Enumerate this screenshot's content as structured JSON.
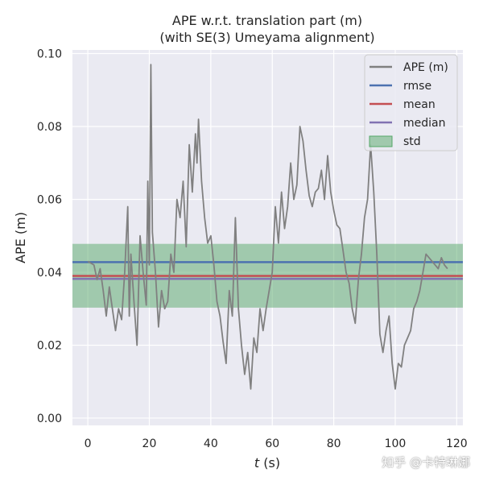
{
  "chart_data": {
    "type": "line",
    "title": [
      "APE w.r.t. translation part (m)",
      "(with SE(3) Umeyama alignment)"
    ],
    "xlabel": "t (s)",
    "ylabel": "APE (m)",
    "xlim": [
      -5,
      122
    ],
    "ylim": [
      -0.002,
      0.101
    ],
    "xticks": [
      0,
      20,
      40,
      60,
      80,
      100,
      120
    ],
    "yticks": [
      0.0,
      0.02,
      0.04,
      0.06,
      0.08,
      0.1
    ],
    "xtick_labels": [
      "0",
      "20",
      "40",
      "60",
      "80",
      "100",
      "120"
    ],
    "ytick_labels": [
      "0.00",
      "0.02",
      "0.04",
      "0.06",
      "0.08",
      "0.10"
    ],
    "grid": true,
    "legend": "top-right",
    "series": [
      {
        "name": "APE (m)",
        "color": "#808080",
        "x": [
          0,
          2,
          3,
          4,
          5,
          6,
          7,
          8,
          9,
          10,
          11,
          12,
          13,
          13.5,
          14,
          15,
          16,
          17,
          18,
          19,
          19.5,
          20,
          20.5,
          21,
          22,
          23,
          24,
          25,
          26,
          27,
          28,
          29,
          30,
          31,
          32,
          33,
          34,
          35,
          35.5,
          36,
          37,
          38,
          39,
          40,
          41,
          42,
          43,
          44,
          45,
          46,
          47,
          48,
          49,
          50,
          51,
          52,
          53,
          54,
          55,
          56,
          57,
          58,
          59,
          60,
          61,
          62,
          63,
          64,
          65,
          66,
          67,
          68,
          69,
          70,
          71,
          72,
          73,
          74,
          75,
          76,
          77,
          78,
          79,
          80,
          81,
          82,
          83,
          84,
          85,
          86,
          87,
          88,
          89,
          90,
          91,
          92,
          93,
          94,
          95,
          96,
          97,
          98,
          99,
          100,
          101,
          102,
          103,
          104,
          105,
          106,
          107,
          108,
          109,
          110,
          111,
          112,
          113,
          114,
          115,
          116,
          117
        ],
        "y": [
          0.043,
          0.042,
          0.038,
          0.041,
          0.035,
          0.028,
          0.036,
          0.03,
          0.024,
          0.03,
          0.027,
          0.04,
          0.058,
          0.028,
          0.045,
          0.032,
          0.02,
          0.05,
          0.04,
          0.031,
          0.065,
          0.042,
          0.097,
          0.051,
          0.04,
          0.025,
          0.035,
          0.03,
          0.032,
          0.045,
          0.04,
          0.06,
          0.055,
          0.065,
          0.047,
          0.075,
          0.062,
          0.078,
          0.07,
          0.082,
          0.065,
          0.055,
          0.048,
          0.05,
          0.042,
          0.032,
          0.028,
          0.021,
          0.015,
          0.035,
          0.028,
          0.055,
          0.03,
          0.02,
          0.012,
          0.018,
          0.008,
          0.022,
          0.018,
          0.03,
          0.024,
          0.03,
          0.035,
          0.04,
          0.058,
          0.048,
          0.062,
          0.052,
          0.058,
          0.07,
          0.06,
          0.064,
          0.08,
          0.076,
          0.068,
          0.061,
          0.058,
          0.062,
          0.063,
          0.068,
          0.06,
          0.072,
          0.062,
          0.057,
          0.053,
          0.052,
          0.046,
          0.04,
          0.037,
          0.03,
          0.026,
          0.038,
          0.045,
          0.055,
          0.06,
          0.075,
          0.062,
          0.045,
          0.023,
          0.018,
          0.024,
          0.028,
          0.015,
          0.008,
          0.015,
          0.014,
          0.02,
          0.022,
          0.024,
          0.03,
          0.032,
          0.035,
          0.04,
          0.045,
          0.044,
          0.043,
          0.042,
          0.041,
          0.044,
          0.042,
          0.041
        ]
      },
      {
        "name": "rmse",
        "color": "#4c72b0",
        "value": 0.0428
      },
      {
        "name": "mean",
        "color": "#c44e52",
        "value": 0.039
      },
      {
        "name": "median",
        "color": "#8172b2",
        "value": 0.0382
      },
      {
        "name": "std",
        "color": "#55a868",
        "range": [
          0.0303,
          0.0478
        ]
      }
    ]
  },
  "watermark": "知乎 @卡特琳娜"
}
